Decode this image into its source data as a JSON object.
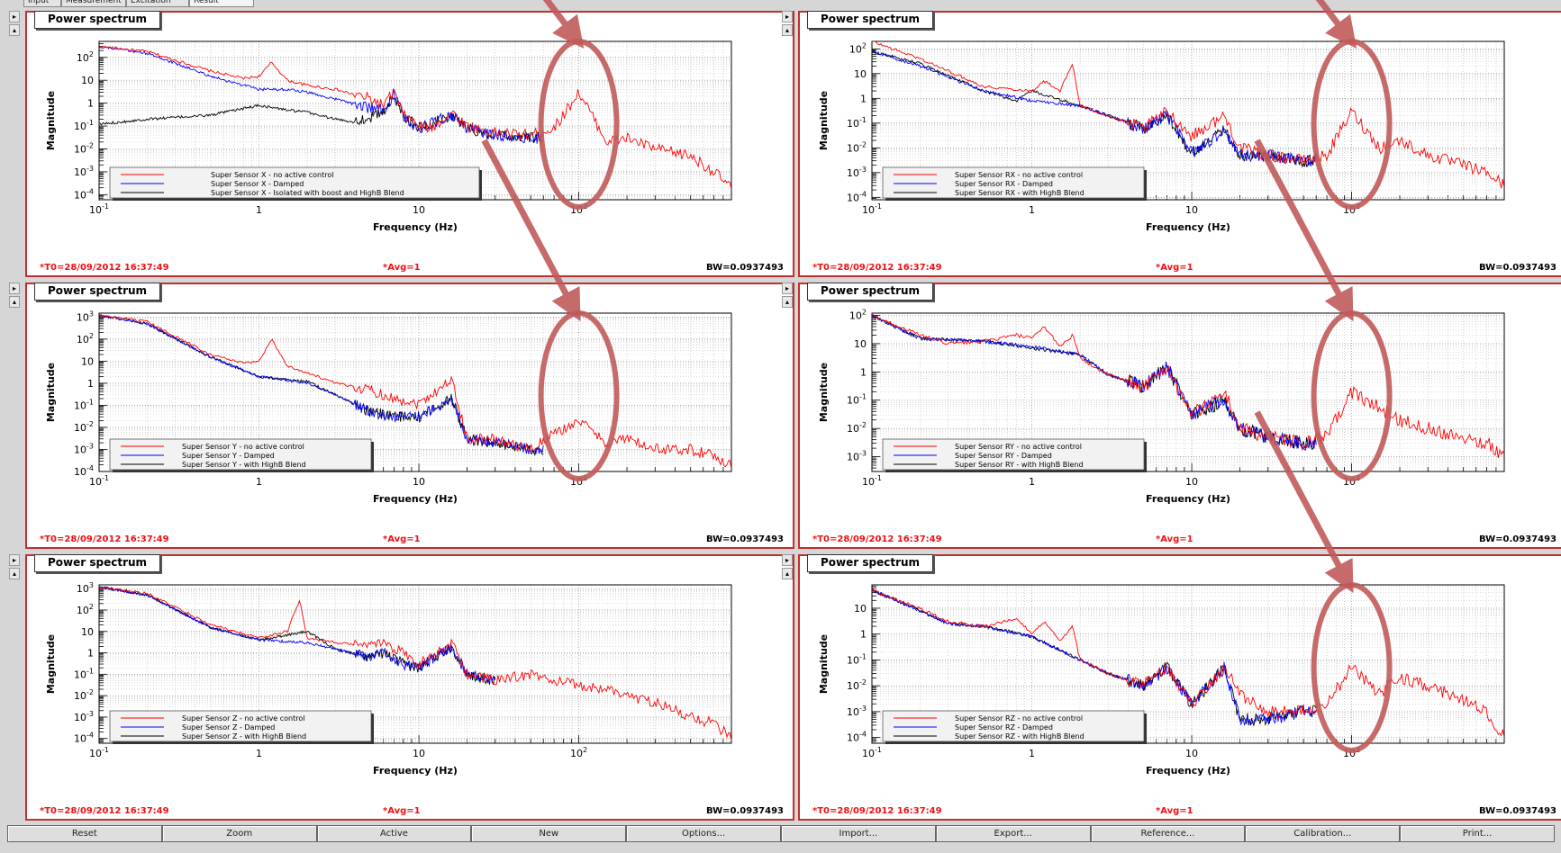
{
  "tabs": [
    {
      "label": "Input",
      "active": false
    },
    {
      "label": "Measurement",
      "active": false
    },
    {
      "label": "Excitation",
      "active": false
    },
    {
      "label": "Result",
      "active": true
    }
  ],
  "buttons": [
    "Reset",
    "Zoom",
    "Active",
    "New",
    "Options...",
    "Import...",
    "Export...",
    "Reference...",
    "Calibration...",
    "Print..."
  ],
  "colors": {
    "frame": "#c03030",
    "series_red": "#ff0000",
    "series_blue": "#0000ff",
    "series_black": "#000000",
    "annotation": "#c05a5a",
    "status_red": "#ee1111"
  },
  "chart_data": [
    {
      "id": "x",
      "type": "line",
      "title": "Power spectrum",
      "xlabel": "Frequency (Hz)",
      "ylabel": "Magnitude",
      "xscale": "log",
      "yscale": "log",
      "xlim": [
        0.1,
        900
      ],
      "ylim": [
        6e-05,
        500
      ],
      "xticks": [
        "10^-1",
        "1",
        "10",
        "10^2"
      ],
      "yticks": [
        "10^2",
        "10",
        "1",
        "10^-1",
        "10^-2",
        "10^-3",
        "10^-4"
      ],
      "legend_position": "bottom-left",
      "status": {
        "t0": "*T0=28/09/2012 16:37:49",
        "avg": "*Avg=1",
        "bw": "BW=0.0937493"
      },
      "highlight_freq": 100,
      "series": [
        {
          "name": "Super Sensor X - no active control",
          "color": "red",
          "x": [
            0.1,
            0.2,
            0.5,
            0.8,
            1.0,
            1.2,
            1.5,
            2.0,
            3.0,
            5.0,
            6.0,
            7.0,
            8.0,
            10,
            12,
            16,
            20,
            30,
            50,
            70,
            100,
            150,
            200,
            300,
            500,
            700,
            900
          ],
          "y": [
            300,
            180,
            25,
            12,
            15,
            60,
            10,
            6,
            4,
            1.5,
            0.8,
            3,
            0.3,
            0.1,
            0.08,
            0.4,
            0.1,
            0.05,
            0.04,
            0.08,
            3,
            0.02,
            0.03,
            0.01,
            0.005,
            0.001,
            0.0002
          ]
        },
        {
          "name": "Super Sensor X - Damped",
          "color": "blue",
          "x": [
            0.1,
            0.2,
            0.5,
            0.8,
            1.0,
            1.5,
            2.0,
            3.0,
            5.0,
            6.0,
            7.0,
            8.0,
            10,
            16,
            20,
            30,
            50,
            60
          ],
          "y": [
            300,
            150,
            15,
            6,
            4,
            4,
            3,
            1.5,
            0.6,
            0.5,
            2.5,
            0.25,
            0.08,
            0.3,
            0.08,
            0.04,
            0.03,
            0.03
          ]
        },
        {
          "name": "Super Sensor X - Isolated with boost and HighB Blend",
          "color": "black",
          "x": [
            0.1,
            0.2,
            0.5,
            1.0,
            1.5,
            2.0,
            3.0,
            4.0,
            5.0,
            6.0,
            7.0,
            8.0,
            10,
            16,
            20,
            30,
            50,
            60
          ],
          "y": [
            0.12,
            0.2,
            0.3,
            0.8,
            0.5,
            0.4,
            0.2,
            0.15,
            0.25,
            0.4,
            2,
            0.3,
            0.08,
            0.3,
            0.08,
            0.04,
            0.03,
            0.03
          ]
        }
      ]
    },
    {
      "id": "rx",
      "type": "line",
      "title": "Power spectrum",
      "xlabel": "Frequency (Hz)",
      "ylabel": "Magnitude",
      "xscale": "log",
      "yscale": "log",
      "xlim": [
        0.1,
        900
      ],
      "ylim": [
        8e-05,
        200
      ],
      "xticks": [
        "10^-1",
        "1",
        "10",
        "10^2"
      ],
      "yticks": [
        "10^2",
        "10",
        "1",
        "10^-1",
        "10^-2",
        "10^-3",
        "10^-4"
      ],
      "legend_position": "bottom-left",
      "status": {
        "t0": "*T0=28/09/2012 16:37:49",
        "avg": "*Avg=1",
        "bw": "BW=0.0937493"
      },
      "highlight_freq": 100,
      "series": [
        {
          "name": "Super Sensor RX - no active control",
          "color": "red",
          "x": [
            0.1,
            0.2,
            0.5,
            1.0,
            1.2,
            1.5,
            1.8,
            2.0,
            2.5,
            3.0,
            5.0,
            7.0,
            10,
            16,
            20,
            30,
            50,
            70,
            100,
            150,
            200,
            300,
            500,
            700,
            900
          ],
          "y": [
            200,
            40,
            3,
            2,
            5,
            2,
            25,
            0.5,
            0.3,
            0.2,
            0.06,
            0.3,
            0.03,
            0.2,
            0.01,
            0.005,
            0.003,
            0.005,
            0.3,
            0.01,
            0.02,
            0.005,
            0.002,
            0.001,
            0.0003
          ]
        },
        {
          "name": "Super Sensor RX - Damped",
          "color": "blue",
          "x": [
            0.1,
            0.2,
            0.5,
            1.0,
            2.0,
            3.0,
            5.0,
            7.0,
            10,
            16,
            20,
            30,
            50,
            60
          ],
          "y": [
            80,
            20,
            2,
            0.8,
            0.5,
            0.2,
            0.06,
            0.2,
            0.006,
            0.05,
            0.005,
            0.005,
            0.003,
            0.003
          ]
        },
        {
          "name": "Super Sensor RX - with HighB Blend",
          "color": "black",
          "x": [
            0.1,
            0.2,
            0.5,
            0.8,
            1.0,
            2.0,
            3.0,
            5.0,
            7.0,
            10,
            16,
            20,
            30,
            50,
            60
          ],
          "y": [
            80,
            25,
            2,
            0.8,
            2,
            0.5,
            0.2,
            0.06,
            0.2,
            0.006,
            0.05,
            0.005,
            0.005,
            0.003,
            0.003
          ]
        }
      ]
    },
    {
      "id": "y",
      "type": "line",
      "title": "Power spectrum",
      "xlabel": "Frequency (Hz)",
      "ylabel": "Magnitude",
      "xscale": "log",
      "yscale": "log",
      "xlim": [
        0.1,
        900
      ],
      "ylim": [
        0.0001,
        1500
      ],
      "xticks": [
        "10^-1",
        "1",
        "10",
        "10^2"
      ],
      "yticks": [
        "10^3",
        "10^2",
        "10",
        "1",
        "10^-1",
        "10^-2",
        "10^-3",
        "10^-4"
      ],
      "legend_position": "bottom-left",
      "status": {
        "t0": "*T0=28/09/2012 16:37:49",
        "avg": "*Avg=1",
        "bw": "BW=0.0937493"
      },
      "highlight_freq": 100,
      "series": [
        {
          "name": "Super Sensor Y - no active control",
          "color": "red",
          "x": [
            0.1,
            0.2,
            0.5,
            0.8,
            1.0,
            1.2,
            1.5,
            2.0,
            3.0,
            5.0,
            7.0,
            10,
            16,
            20,
            30,
            50,
            70,
            100,
            150,
            200,
            300,
            500,
            700,
            900
          ],
          "y": [
            1200,
            600,
            20,
            8,
            10,
            100,
            6,
            3,
            1,
            0.5,
            0.2,
            0.12,
            1.5,
            0.003,
            0.003,
            0.001,
            0.005,
            0.02,
            0.002,
            0.003,
            0.001,
            0.001,
            0.0005,
            0.0002
          ]
        },
        {
          "name": "Super Sensor Y - Damped",
          "color": "blue",
          "x": [
            0.1,
            0.2,
            0.5,
            1.0,
            2.0,
            3.0,
            5.0,
            7.0,
            10,
            16,
            20,
            30,
            50,
            60
          ],
          "y": [
            1200,
            500,
            15,
            2,
            1,
            0.3,
            0.05,
            0.03,
            0.03,
            0.2,
            0.003,
            0.002,
            0.001,
            0.001
          ]
        },
        {
          "name": "Super Sensor Y - with HighB Blend",
          "color": "black",
          "x": [
            0.1,
            0.2,
            0.5,
            1.0,
            2.0,
            3.0,
            5.0,
            7.0,
            10,
            16,
            20,
            30,
            50,
            60
          ],
          "y": [
            1200,
            500,
            15,
            2,
            1.2,
            0.3,
            0.05,
            0.03,
            0.03,
            0.2,
            0.003,
            0.002,
            0.001,
            0.001
          ]
        }
      ]
    },
    {
      "id": "ry",
      "type": "line",
      "title": "Power spectrum",
      "xlabel": "Frequency (Hz)",
      "ylabel": "Magnitude",
      "xscale": "log",
      "yscale": "log",
      "xlim": [
        0.1,
        900
      ],
      "ylim": [
        0.0003,
        120
      ],
      "xticks": [
        "10^-1",
        "1",
        "10",
        "10^2"
      ],
      "yticks": [
        "10^2",
        "10",
        "1",
        "10^-1",
        "10^-2",
        "10^-3"
      ],
      "legend_position": "bottom-left",
      "status": {
        "t0": "*T0=28/09/2012 16:37:49",
        "avg": "*Avg=1",
        "bw": "BW=0.0937493"
      },
      "highlight_freq": 100,
      "series": [
        {
          "name": "Super Sensor RY - no active control",
          "color": "red",
          "x": [
            0.1,
            0.2,
            0.3,
            0.5,
            0.8,
            1.0,
            1.2,
            1.5,
            1.8,
            2.0,
            3.0,
            5.0,
            7.0,
            10,
            16,
            20,
            30,
            50,
            70,
            100,
            150,
            200,
            300,
            500,
            700,
            900
          ],
          "y": [
            100,
            20,
            10,
            12,
            20,
            15,
            40,
            8,
            20,
            3,
            0.8,
            0.3,
            1.5,
            0.03,
            0.2,
            0.01,
            0.005,
            0.003,
            0.005,
            0.2,
            0.05,
            0.02,
            0.01,
            0.005,
            0.003,
            0.001
          ]
        },
        {
          "name": "Super Sensor RY - Damped",
          "color": "blue",
          "x": [
            0.1,
            0.2,
            0.5,
            1.0,
            2.0,
            3.0,
            5.0,
            7.0,
            10,
            16,
            20,
            30,
            50,
            60
          ],
          "y": [
            100,
            15,
            12,
            8,
            4,
            0.8,
            0.3,
            1.5,
            0.03,
            0.1,
            0.01,
            0.005,
            0.003,
            0.003
          ]
        },
        {
          "name": "Super Sensor RY - with HighB Blend",
          "color": "black",
          "x": [
            0.1,
            0.2,
            0.5,
            1.0,
            2.0,
            3.0,
            5.0,
            7.0,
            10,
            16,
            20,
            30,
            50,
            60
          ],
          "y": [
            100,
            15,
            12,
            7,
            4,
            0.8,
            0.3,
            1.5,
            0.03,
            0.1,
            0.01,
            0.005,
            0.003,
            0.003
          ]
        }
      ]
    },
    {
      "id": "z",
      "type": "line",
      "title": "Power spectrum",
      "xlabel": "Frequency (Hz)",
      "ylabel": "Magnitude",
      "xscale": "log",
      "yscale": "log",
      "xlim": [
        0.1,
        900
      ],
      "ylim": [
        6e-05,
        1500
      ],
      "xticks": [
        "10^-1",
        "1",
        "10",
        "10^2"
      ],
      "yticks": [
        "10^3",
        "10^2",
        "10",
        "1",
        "10^-1",
        "10^-2",
        "10^-3",
        "10^-4"
      ],
      "legend_position": "bottom-left",
      "status": {
        "t0": "*T0=28/09/2012 16:37:49",
        "avg": "*Avg=1",
        "bw": "BW=0.0937493"
      },
      "highlight_freq": null,
      "series": [
        {
          "name": "Super Sensor Z - no active control",
          "color": "red",
          "x": [
            0.1,
            0.2,
            0.5,
            1.0,
            1.5,
            1.8,
            2.0,
            3.0,
            5.0,
            6.0,
            8.0,
            10,
            16,
            20,
            30,
            50,
            70,
            100,
            150,
            200,
            300,
            500,
            700,
            900
          ],
          "y": [
            1200,
            600,
            20,
            5,
            10,
            300,
            5,
            3,
            2,
            3,
            1,
            0.3,
            3,
            0.1,
            0.05,
            0.1,
            0.05,
            0.03,
            0.02,
            0.01,
            0.005,
            0.001,
            0.0005,
            0.0001
          ]
        },
        {
          "name": "Super Sensor Z - Damped",
          "color": "blue",
          "x": [
            0.1,
            0.2,
            0.5,
            1.0,
            2.0,
            3.0,
            5.0,
            6.0,
            8.0,
            10,
            16,
            20,
            30
          ],
          "y": [
            1200,
            500,
            15,
            4,
            3,
            1.5,
            0.6,
            1,
            0.3,
            0.2,
            2,
            0.1,
            0.05
          ]
        },
        {
          "name": "Super Sensor Z - with HighB Blend",
          "color": "black",
          "x": [
            0.1,
            0.2,
            0.5,
            1.0,
            2.0,
            3.0,
            5.0,
            6.0,
            8.0,
            10,
            16,
            20,
            30
          ],
          "y": [
            1200,
            500,
            15,
            4,
            10,
            1.5,
            0.6,
            1,
            0.3,
            0.2,
            2,
            0.1,
            0.05
          ]
        }
      ]
    },
    {
      "id": "rz",
      "type": "line",
      "title": "Power spectrum",
      "xlabel": "Frequency (Hz)",
      "ylabel": "Magnitude",
      "xscale": "log",
      "yscale": "log",
      "xlim": [
        0.1,
        900
      ],
      "ylim": [
        6e-05,
        80
      ],
      "xticks": [
        "10^-1",
        "1",
        "10",
        "10^2"
      ],
      "yticks": [
        "10",
        "1",
        "10^-1",
        "10^-2",
        "10^-3",
        "10^-4"
      ],
      "legend_position": "bottom-left",
      "status": {
        "t0": "*T0=28/09/2012 16:37:49",
        "avg": "*Avg=1",
        "bw": "BW=0.0937493"
      },
      "highlight_freq": 100,
      "series": [
        {
          "name": "Super Sensor RZ - no active control",
          "color": "red",
          "x": [
            0.1,
            0.2,
            0.3,
            0.5,
            0.8,
            1.0,
            1.2,
            1.5,
            1.8,
            2.0,
            3.0,
            5.0,
            7.0,
            10,
            16,
            20,
            30,
            50,
            70,
            100,
            150,
            200,
            300,
            500,
            700,
            900
          ],
          "y": [
            50,
            10,
            3,
            2,
            4,
            1,
            3,
            0.5,
            2,
            0.1,
            0.03,
            0.01,
            0.05,
            0.002,
            0.05,
            0.005,
            0.001,
            0.001,
            0.002,
            0.05,
            0.005,
            0.02,
            0.01,
            0.003,
            0.001,
            0.0001
          ]
        },
        {
          "name": "Super Sensor RZ - Damped",
          "color": "blue",
          "x": [
            0.1,
            0.2,
            0.3,
            0.5,
            1.0,
            2.0,
            3.0,
            5.0,
            7.0,
            10,
            16,
            20,
            30,
            50,
            60
          ],
          "y": [
            50,
            8,
            2.5,
            2,
            0.8,
            0.1,
            0.03,
            0.01,
            0.05,
            0.002,
            0.05,
            0.0005,
            0.0005,
            0.001,
            0.001
          ]
        },
        {
          "name": "Super Sensor RZ - with HighB Blend",
          "color": "black",
          "x": [
            0.1,
            0.2,
            0.3,
            0.5,
            1.0,
            2.0,
            3.0,
            5.0,
            7.0,
            10,
            16,
            20,
            30,
            50,
            60
          ],
          "y": [
            50,
            8,
            2.5,
            2,
            0.8,
            0.1,
            0.03,
            0.01,
            0.05,
            0.002,
            0.05,
            0.0005,
            0.0005,
            0.001,
            0.001
          ]
        }
      ]
    }
  ]
}
